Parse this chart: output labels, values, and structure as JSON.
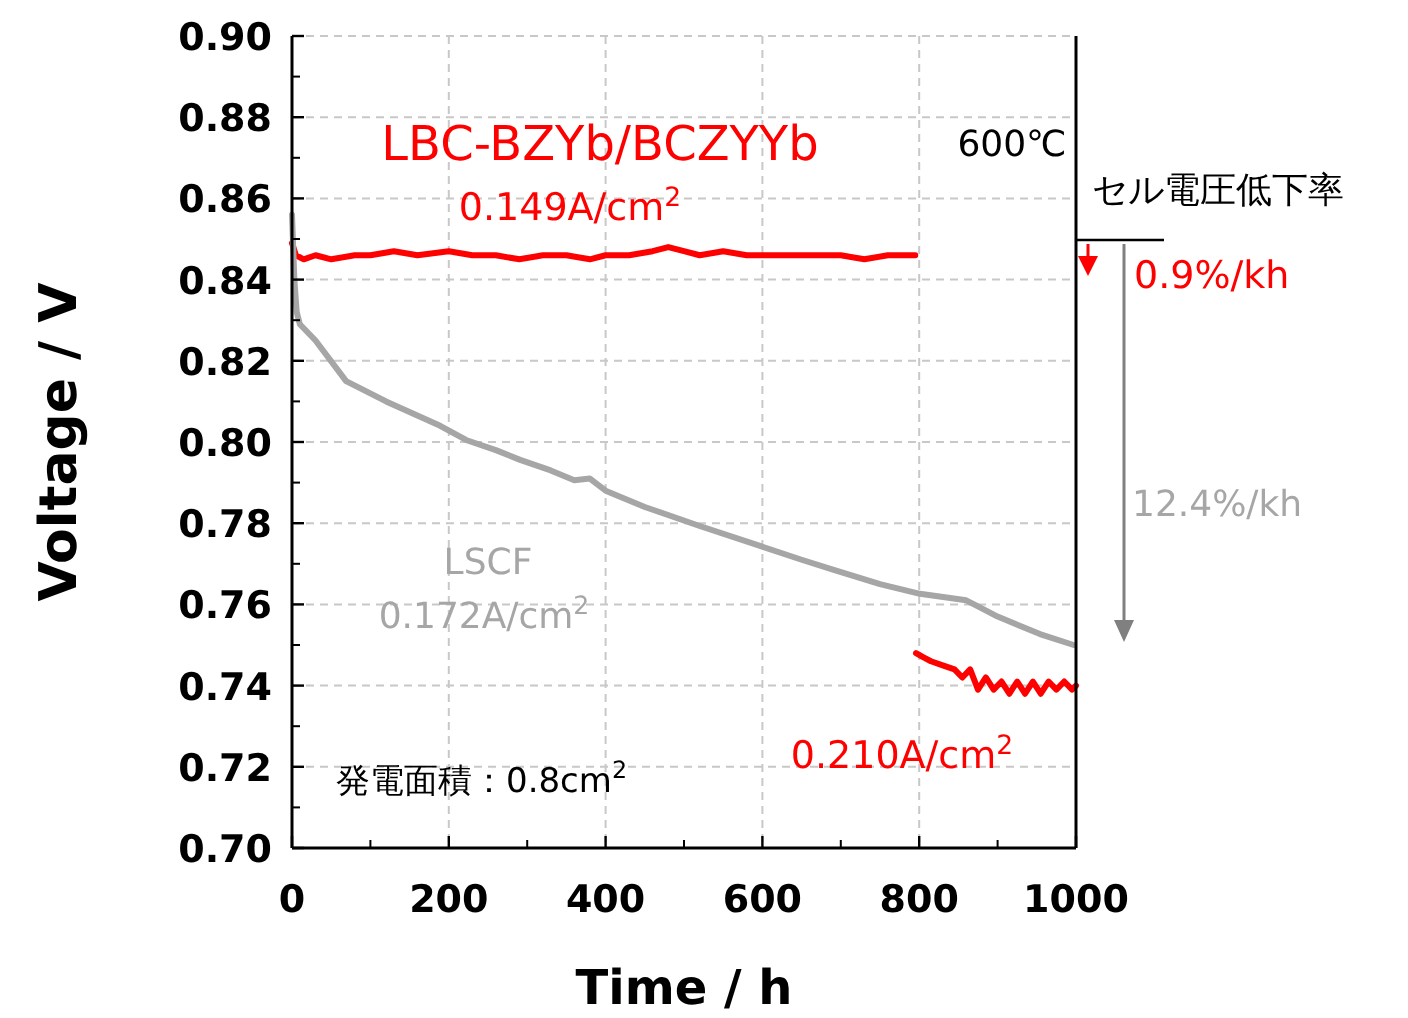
{
  "chart_data": {
    "type": "line",
    "xlabel": "Time / h",
    "ylabel": "Voltage / V",
    "xlim": [
      0,
      1000
    ],
    "ylim": [
      0.7,
      0.9
    ],
    "xticks": [
      0,
      200,
      400,
      600,
      800,
      1000
    ],
    "yticks": [
      {
        "value": 0.7,
        "label": "0.70"
      },
      {
        "value": 0.72,
        "label": "0.72"
      },
      {
        "value": 0.74,
        "label": "0.74"
      },
      {
        "value": 0.76,
        "label": "0.76"
      },
      {
        "value": 0.78,
        "label": "0.78"
      },
      {
        "value": 0.8,
        "label": "0.80"
      },
      {
        "value": 0.82,
        "label": "0.82"
      },
      {
        "value": 0.84,
        "label": "0.84"
      },
      {
        "value": 0.86,
        "label": "0.86"
      },
      {
        "value": 0.88,
        "label": "0.88"
      },
      {
        "value": 0.9,
        "label": "0.90"
      }
    ],
    "grid": true,
    "series": [
      {
        "name": "LBC-BZYb/BCZYYb",
        "color": "#ff0000",
        "x": [
          0,
          5,
          15,
          30,
          50,
          80,
          100,
          130,
          160,
          200,
          230,
          260,
          290,
          320,
          350,
          380,
          400,
          430,
          460,
          480,
          500,
          520,
          550,
          580,
          600,
          630,
          660,
          700,
          730,
          760,
          795
        ],
        "values": [
          0.849,
          0.846,
          0.845,
          0.846,
          0.845,
          0.846,
          0.846,
          0.847,
          0.846,
          0.847,
          0.846,
          0.846,
          0.845,
          0.846,
          0.846,
          0.845,
          0.846,
          0.846,
          0.847,
          0.848,
          0.847,
          0.846,
          0.847,
          0.846,
          0.846,
          0.846,
          0.846,
          0.846,
          0.845,
          0.846,
          0.846
        ]
      },
      {
        "name": "LSCF",
        "color": "#a6a6a6",
        "x": [
          0,
          3,
          6,
          10,
          30,
          69,
          120,
          189,
          222,
          260,
          291,
          330,
          360,
          380,
          400,
          450,
          520,
          597,
          650,
          691,
          750,
          801,
          860,
          870,
          900,
          954,
          997
        ],
        "values": [
          0.856,
          0.84,
          0.832,
          0.829,
          0.825,
          0.815,
          0.81,
          0.804,
          0.8005,
          0.798,
          0.7956,
          0.793,
          0.7906,
          0.791,
          0.788,
          0.784,
          0.7793,
          0.7744,
          0.771,
          0.7685,
          0.765,
          0.7626,
          0.761,
          0.76,
          0.757,
          0.7527,
          0.75
        ]
      },
      {
        "color": "#ff0000",
        "x": [
          796,
          805,
          815,
          830,
          845,
          855,
          865,
          875,
          885,
          895,
          905,
          915,
          925,
          935,
          945,
          955,
          965,
          975,
          985,
          995,
          1000
        ],
        "values": [
          0.748,
          0.747,
          0.746,
          0.745,
          0.744,
          0.742,
          0.744,
          0.739,
          0.742,
          0.739,
          0.741,
          0.738,
          0.741,
          0.738,
          0.741,
          0.738,
          0.741,
          0.739,
          0.741,
          0.739,
          0.74
        ]
      }
    ],
    "annotations": [
      "0.149A/cm$^{2}$",
      "600℃",
      "セル電圧低下率",
      "0.9%/kh",
      "12.4%/kh",
      "0.172A/cm$^{2}$",
      "0.210A/cm$^{2}$",
      "発電面積：0.8cm$^{2}$"
    ]
  }
}
